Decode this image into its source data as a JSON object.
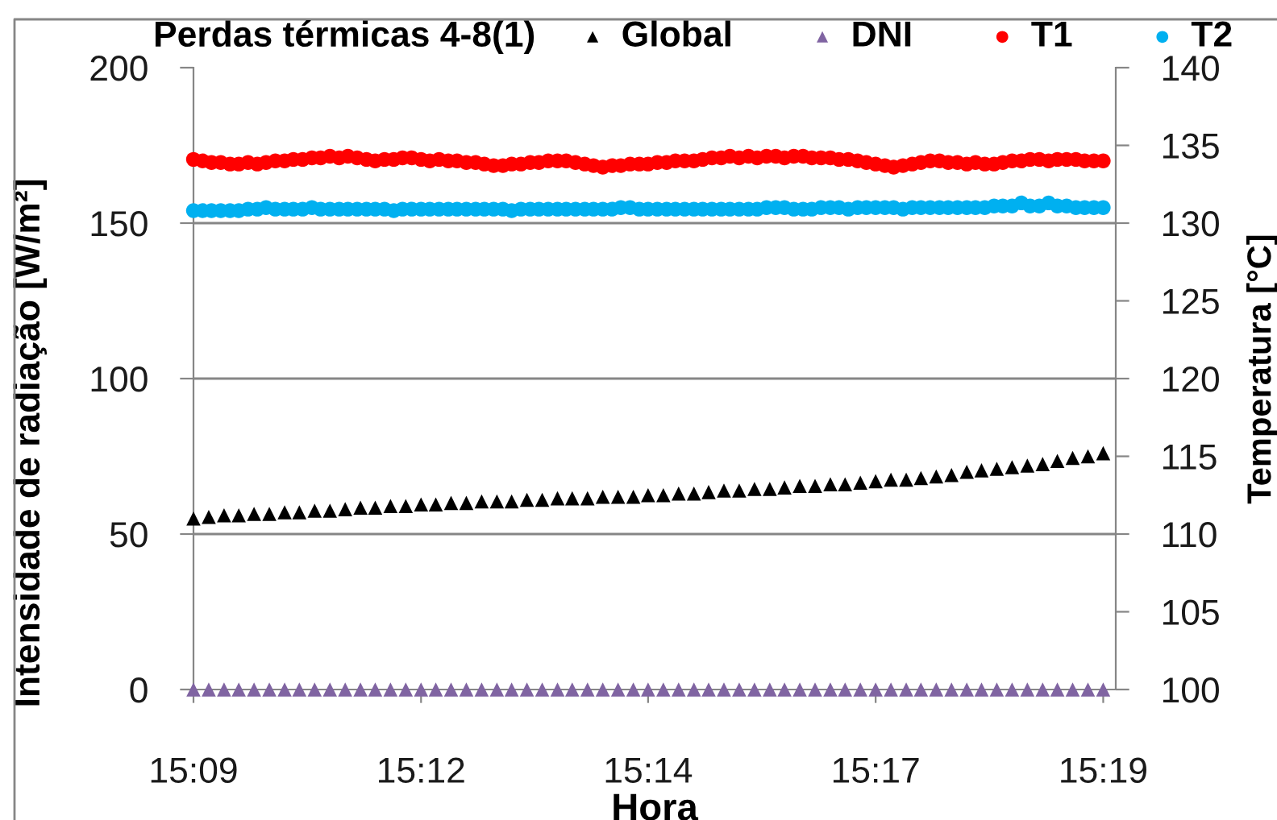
{
  "chart_data": {
    "type": "scatter",
    "title": "Perdas térmicas 4-8(1)",
    "xlabel": "Hora",
    "ylabel": "Intensidade de radiação [W/m²]",
    "y2label": "Temperatura [°C]",
    "x": [
      15.15,
      15.1517,
      15.1533,
      15.155,
      15.1567,
      15.1583,
      15.16,
      15.1617,
      15.1633,
      15.165,
      15.1667,
      15.1683,
      15.17,
      15.1717,
      15.1733,
      15.175,
      15.1767,
      15.1783,
      15.18,
      15.1817,
      15.1833,
      15.185,
      15.1867,
      15.1883,
      15.19,
      15.1917,
      15.1933,
      15.195,
      15.1967,
      15.1983,
      15.2,
      15.2017,
      15.2033,
      15.205,
      15.2067,
      15.2083,
      15.21,
      15.2117,
      15.2133,
      15.215,
      15.2167,
      15.2183,
      15.22,
      15.2217,
      15.2233,
      15.225,
      15.2267,
      15.2283,
      15.23,
      15.2317,
      15.2333,
      15.235,
      15.2367,
      15.2383,
      15.24,
      15.2417,
      15.2433,
      15.245,
      15.2467,
      15.2483,
      15.25,
      15.2517,
      15.2533,
      15.255,
      15.2567,
      15.2583,
      15.26,
      15.2617,
      15.2633,
      15.265,
      15.2667,
      15.2683,
      15.27,
      15.2717,
      15.2733,
      15.275,
      15.2767,
      15.2783,
      15.28,
      15.2817,
      15.2833,
      15.285,
      15.2867,
      15.2883,
      15.29,
      15.2917,
      15.2933,
      15.295,
      15.2967,
      15.2983,
      15.3,
      15.3017,
      15.3033,
      15.305,
      15.3067,
      15.3083,
      15.31,
      15.3117,
      15.3133,
      15.315,
      15.3167
    ],
    "xlim": [
      15.15,
      15.319
    ],
    "xticks": [
      {
        "value": 15.15,
        "label": "15:09"
      },
      {
        "value": 15.1917,
        "label": "15:12"
      },
      {
        "value": 15.2333,
        "label": "15:14"
      },
      {
        "value": 15.275,
        "label": "15:17"
      },
      {
        "value": 15.3167,
        "label": "15:19"
      }
    ],
    "ylim": [
      0,
      200
    ],
    "yticks": [
      0,
      50,
      100,
      150,
      200
    ],
    "y2lim": [
      100,
      140
    ],
    "y2ticks": [
      100,
      105,
      110,
      115,
      120,
      125,
      130,
      135,
      140
    ],
    "grid": "y",
    "legend": "top",
    "series": [
      {
        "name": "Global",
        "color": "#000000",
        "marker": "triangle",
        "x": [
          15.15,
          15.1528,
          15.1556,
          15.1583,
          15.1611,
          15.1639,
          15.1667,
          15.1694,
          15.1722,
          15.175,
          15.1778,
          15.1806,
          15.1833,
          15.1861,
          15.1889,
          15.1917,
          15.1944,
          15.1972,
          15.2,
          15.2028,
          15.2056,
          15.2083,
          15.2111,
          15.2139,
          15.2167,
          15.2194,
          15.2222,
          15.225,
          15.2278,
          15.2306,
          15.2333,
          15.2361,
          15.2389,
          15.2417,
          15.2444,
          15.2472,
          15.25,
          15.2528,
          15.2556,
          15.2583,
          15.2611,
          15.2639,
          15.2667,
          15.2694,
          15.2722,
          15.275,
          15.2778,
          15.2806,
          15.2833,
          15.2861,
          15.2889,
          15.2917,
          15.2944,
          15.2972,
          15.3,
          15.3028,
          15.3056,
          15.3083,
          15.3111,
          15.3139,
          15.3167
        ],
        "values": [
          55,
          55.5,
          56,
          56,
          56.5,
          56.5,
          57,
          57,
          57.5,
          57.5,
          58,
          58.5,
          58.5,
          59,
          59,
          59.5,
          59.5,
          60,
          60,
          60.5,
          60.5,
          60.5,
          61,
          61,
          61.5,
          61.5,
          61.5,
          62,
          62,
          62,
          62.5,
          62.5,
          63,
          63,
          63.5,
          64,
          64,
          64.5,
          64.5,
          65,
          65.5,
          65.5,
          66,
          66,
          66.5,
          67,
          67.5,
          67.5,
          68,
          68.5,
          69,
          70,
          70.5,
          71,
          71.5,
          72,
          72.5,
          73.5,
          74.5,
          75,
          76
        ]
      },
      {
        "name": "DNI",
        "color": "#8064a2",
        "marker": "triangle",
        "x": [
          15.15,
          15.1528,
          15.1556,
          15.1583,
          15.1611,
          15.1639,
          15.1667,
          15.1694,
          15.1722,
          15.175,
          15.1778,
          15.1806,
          15.1833,
          15.1861,
          15.1889,
          15.1917,
          15.1944,
          15.1972,
          15.2,
          15.2028,
          15.2056,
          15.2083,
          15.2111,
          15.2139,
          15.2167,
          15.2194,
          15.2222,
          15.225,
          15.2278,
          15.2306,
          15.2333,
          15.2361,
          15.2389,
          15.2417,
          15.2444,
          15.2472,
          15.25,
          15.2528,
          15.2556,
          15.2583,
          15.2611,
          15.2639,
          15.2667,
          15.2694,
          15.2722,
          15.275,
          15.2778,
          15.2806,
          15.2833,
          15.2861,
          15.2889,
          15.2917,
          15.2944,
          15.2972,
          15.3,
          15.3028,
          15.3056,
          15.3083,
          15.3111,
          15.3139,
          15.3167
        ],
        "values": [
          0,
          0,
          0,
          0,
          0,
          0,
          0,
          0,
          0,
          0,
          0,
          0,
          0,
          0,
          0,
          0,
          0,
          0,
          0,
          0,
          0,
          0,
          0,
          0,
          0,
          0,
          0,
          0,
          0,
          0,
          0,
          0,
          0,
          0,
          0,
          0,
          0,
          0,
          0,
          0,
          0,
          0,
          0,
          0,
          0,
          0,
          0,
          0,
          0,
          0,
          0,
          0,
          0,
          0,
          0,
          0,
          0,
          0,
          0,
          0,
          0
        ]
      },
      {
        "name": "T1",
        "color": "#ff0000",
        "marker": "circle",
        "axis": "y2",
        "values": [
          134.1,
          134.0,
          133.9,
          133.9,
          133.8,
          133.8,
          133.9,
          133.8,
          133.9,
          134.0,
          134.0,
          134.1,
          134.1,
          134.2,
          134.2,
          134.3,
          134.2,
          134.3,
          134.2,
          134.1,
          134.0,
          134.1,
          134.1,
          134.2,
          134.2,
          134.1,
          134.0,
          134.1,
          134.0,
          134.0,
          133.9,
          133.9,
          133.8,
          133.7,
          133.7,
          133.8,
          133.8,
          133.9,
          133.9,
          134.0,
          134.0,
          134.0,
          133.9,
          133.8,
          133.7,
          133.6,
          133.7,
          133.7,
          133.8,
          133.8,
          133.8,
          133.9,
          133.9,
          134.0,
          134.0,
          134.0,
          134.1,
          134.2,
          134.2,
          134.3,
          134.2,
          134.3,
          134.2,
          134.3,
          134.3,
          134.2,
          134.3,
          134.3,
          134.2,
          134.2,
          134.2,
          134.1,
          134.1,
          134.0,
          133.9,
          133.8,
          133.7,
          133.6,
          133.7,
          133.8,
          133.9,
          134.0,
          134.0,
          133.9,
          133.9,
          133.8,
          133.9,
          133.8,
          133.8,
          133.9,
          134.0,
          134.0,
          134.1,
          134.1,
          134.0,
          134.1,
          134.1,
          134.1,
          134.0,
          134.0,
          134.0
        ]
      },
      {
        "name": "T2",
        "color": "#00b0f0",
        "marker": "circle",
        "axis": "y2",
        "values": [
          130.8,
          130.8,
          130.8,
          130.8,
          130.8,
          130.8,
          130.9,
          130.9,
          131.0,
          130.9,
          130.9,
          130.9,
          130.9,
          131.0,
          130.9,
          130.9,
          130.9,
          130.9,
          130.9,
          130.9,
          130.9,
          130.9,
          130.8,
          130.9,
          130.9,
          130.9,
          130.9,
          130.9,
          130.9,
          130.9,
          130.9,
          130.9,
          130.9,
          130.9,
          130.9,
          130.8,
          130.9,
          130.9,
          130.9,
          130.9,
          130.9,
          130.9,
          130.9,
          130.9,
          130.9,
          130.9,
          130.9,
          131.0,
          131.0,
          130.9,
          130.9,
          130.9,
          130.9,
          130.9,
          130.9,
          130.9,
          130.9,
          130.9,
          130.9,
          130.9,
          130.9,
          130.9,
          130.9,
          131.0,
          131.0,
          131.0,
          130.9,
          130.9,
          130.9,
          131.0,
          131.0,
          131.0,
          130.9,
          131.0,
          131.0,
          131.0,
          131.0,
          131.0,
          130.9,
          131.0,
          131.0,
          131.0,
          131.0,
          131.0,
          131.0,
          131.0,
          131.0,
          131.0,
          131.1,
          131.1,
          131.1,
          131.3,
          131.1,
          131.1,
          131.3,
          131.1,
          131.1,
          131.0,
          131.0,
          131.0,
          131.0
        ]
      }
    ]
  }
}
